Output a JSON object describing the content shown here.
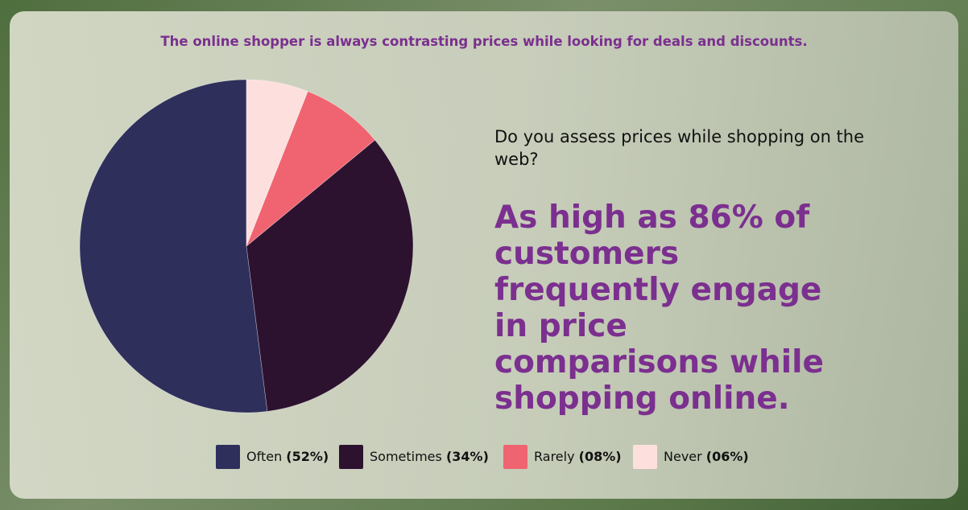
{
  "chart_data": {
    "type": "pie",
    "title": "The online shopper is always contrasting prices while looking for deals and discounts.",
    "question": "Do you assess prices while shopping on the web?",
    "headline": "As high as 86% of customers frequently engage in price comparisons while shopping online.",
    "categories": [
      "Often",
      "Sometimes",
      "Rarely",
      "Never"
    ],
    "values": [
      52,
      34,
      8,
      6
    ],
    "value_labels": [
      "(52%)",
      "(34%)",
      "(08%)",
      "(06%)"
    ],
    "colors": [
      "#2e2f5b",
      "#2d1230",
      "#ef6470",
      "#fde0de"
    ]
  }
}
